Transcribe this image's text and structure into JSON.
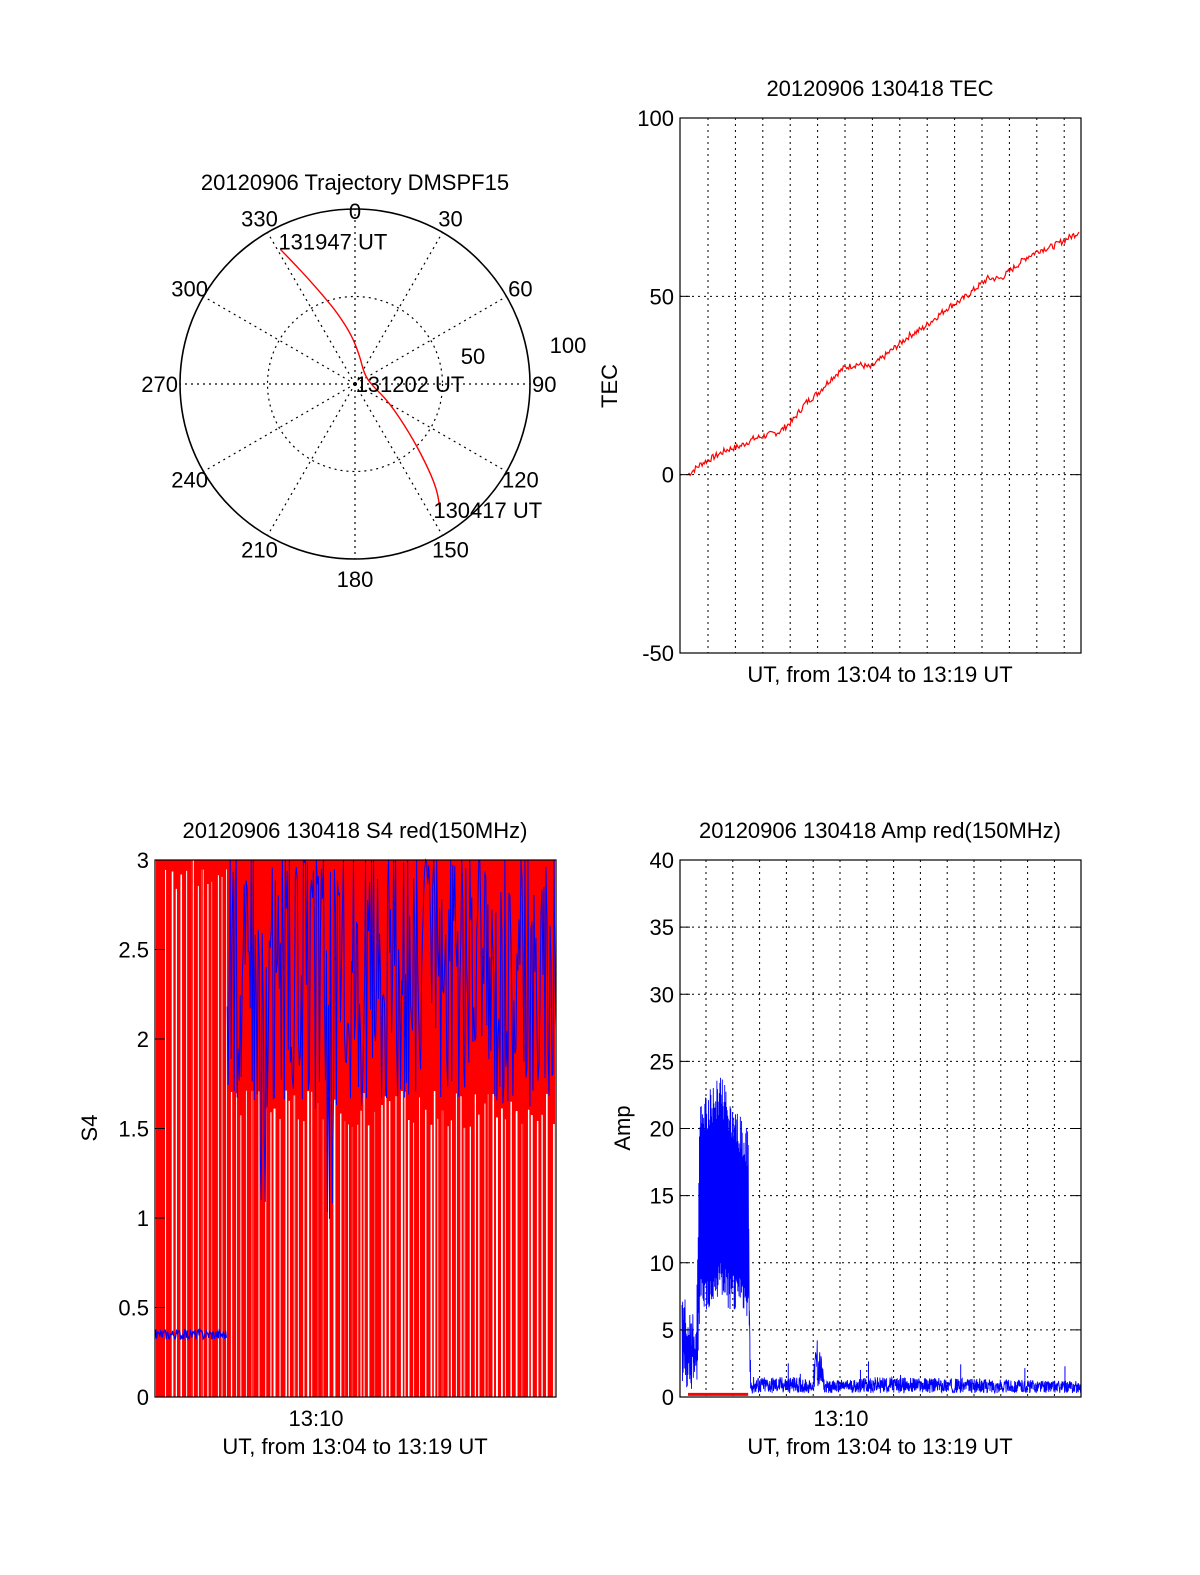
{
  "chart_data": [
    {
      "type": "polar",
      "title": "20120906 Trajectory DMSPF15",
      "azimuth_labels": [
        "0",
        "30",
        "60",
        "90",
        "120",
        "150",
        "180",
        "210",
        "240",
        "270",
        "300",
        "330"
      ],
      "radius_labels": [
        "50",
        "100"
      ],
      "rlim": [
        0,
        100
      ],
      "trajectory_color": "#ff0000",
      "trajectory": {
        "az": [
          331,
          333,
          336,
          340,
          346,
          356,
          10,
          40,
          90,
          118,
          132,
          138,
          142,
          146
        ],
        "r": [
          88,
          78,
          66,
          54,
          42,
          28,
          16,
          8,
          9,
          22,
          42,
          60,
          76,
          87
        ]
      },
      "annotations": [
        {
          "text": "131947 UT",
          "az": 335,
          "r": 90
        },
        {
          "text": "131202 UT",
          "az": 90,
          "r": 6
        },
        {
          "text": "130417 UT",
          "az": 145,
          "r": 88
        }
      ]
    },
    {
      "type": "line",
      "title": "20120906 130418 TEC",
      "xlabel": "UT, from 13:04 to 13:19 UT",
      "ylabel": "TEC",
      "ylim": [
        -50,
        100
      ],
      "yticks": [
        "100",
        "50",
        "0",
        "-50"
      ],
      "grid": true,
      "series": [
        {
          "color": "#ff0000",
          "x": [
            0,
            1,
            2,
            3,
            4,
            5,
            6,
            7,
            8,
            9,
            10,
            11,
            12,
            13,
            14,
            15,
            16,
            17,
            18,
            19,
            20,
            21,
            22,
            23,
            24,
            25,
            26,
            27,
            28,
            29,
            30
          ],
          "y": [
            0,
            3,
            5,
            7,
            8,
            10,
            11,
            12,
            15,
            20,
            23,
            27,
            30,
            31,
            30,
            33,
            36,
            39,
            41,
            44,
            47,
            49,
            52,
            55,
            55,
            58,
            61,
            63,
            64,
            66,
            68
          ]
        }
      ]
    },
    {
      "type": "line",
      "title": "20120906 130418 S4 red(150MHz)",
      "xlabel": "UT, from 13:04 to 13:19 UT",
      "ylabel": "S4",
      "ylim": [
        0,
        3
      ],
      "yticks": [
        "0",
        "0.5",
        "1",
        "1.5",
        "2",
        "2.5",
        "3"
      ],
      "xticks": [
        "13:10"
      ],
      "series": [
        {
          "color": "#ff0000",
          "style": "dense-spikes",
          "baseline": 1.5,
          "max": 3
        },
        {
          "color": "#0000ff",
          "x": [
            0.0,
            0.03,
            0.06,
            0.1,
            0.15,
            0.18,
            0.2,
            0.25,
            0.3,
            0.35,
            0.4,
            0.45,
            0.5,
            0.6,
            0.7,
            0.8,
            0.9,
            1.0
          ],
          "y": [
            0.33,
            0.38,
            0.35,
            0.36,
            0.33,
            2.2,
            2.4,
            1.6,
            2.3,
            2.1,
            1.9,
            2.5,
            2.2,
            2.6,
            2.4,
            2.5,
            2.4,
            2.6
          ]
        }
      ]
    },
    {
      "type": "line",
      "title": "20120906 130418 Amp red(150MHz)",
      "xlabel": "UT, from 13:04 to 13:19 UT",
      "ylabel": "Amp",
      "ylim": [
        0,
        40
      ],
      "yticks": [
        "0",
        "5",
        "10",
        "15",
        "20",
        "25",
        "30",
        "35",
        "40"
      ],
      "xticks": [
        "13:10"
      ],
      "grid": true,
      "series": [
        {
          "color": "#0000ff",
          "style": "envelope",
          "x": [
            0.0,
            0.02,
            0.04,
            0.05,
            0.1,
            0.15,
            0.17,
            0.175,
            0.3,
            0.33,
            0.34,
            0.35,
            0.36,
            0.5,
            1.0
          ],
          "upper": [
            8,
            7,
            6,
            22,
            24,
            21,
            20,
            1.5,
            1.5,
            1.2,
            4.8,
            3.5,
            1.2,
            1.5,
            1.2
          ],
          "lower": [
            1,
            0.5,
            0.5,
            6,
            7,
            6,
            6,
            0.2,
            0.3,
            0.3,
            0.5,
            0.5,
            0.3,
            0.3,
            0.3
          ]
        },
        {
          "color": "#ff0000",
          "style": "baseline",
          "x": [
            0.02,
            0.17
          ],
          "y": [
            0.2,
            0.2
          ]
        }
      ]
    }
  ]
}
